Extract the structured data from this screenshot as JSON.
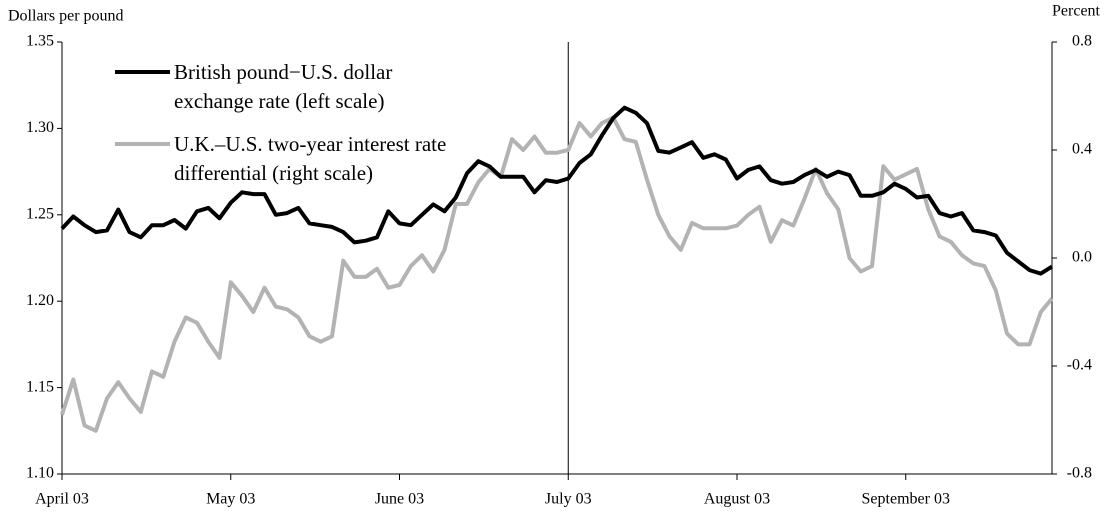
{
  "chart_data": {
    "type": "line",
    "y_label": "Dollars per pound",
    "y2_label": "Percent",
    "categories": [
      "April 03",
      null,
      null,
      null,
      null,
      null,
      null,
      null,
      null,
      null,
      null,
      null,
      null,
      null,
      null,
      "May 03",
      null,
      null,
      null,
      null,
      null,
      null,
      null,
      null,
      null,
      null,
      null,
      null,
      null,
      null,
      "June 03",
      null,
      null,
      null,
      null,
      null,
      null,
      null,
      null,
      null,
      null,
      null,
      null,
      null,
      null,
      "July 03",
      null,
      null,
      null,
      null,
      null,
      null,
      null,
      null,
      null,
      null,
      null,
      null,
      null,
      null,
      "August 03",
      null,
      null,
      null,
      null,
      null,
      null,
      null,
      null,
      null,
      null,
      null,
      null,
      null,
      null,
      "September 03",
      null,
      null,
      null,
      null,
      null,
      null,
      null,
      null,
      null,
      null,
      null,
      null,
      null
    ],
    "marker_category": "July 03",
    "series": [
      {
        "name": "British pound−U.S. dollar exchange rate (left scale)",
        "color": "#000000",
        "axis": "y",
        "values": [
          1.242,
          1.249,
          1.244,
          1.24,
          1.241,
          1.253,
          1.24,
          1.237,
          1.244,
          1.244,
          1.247,
          1.242,
          1.252,
          1.254,
          1.248,
          1.257,
          1.263,
          1.262,
          1.262,
          1.25,
          1.251,
          1.254,
          1.245,
          1.244,
          1.243,
          1.24,
          1.234,
          1.235,
          1.237,
          1.252,
          1.245,
          1.244,
          1.25,
          1.256,
          1.252,
          1.26,
          1.274,
          1.281,
          1.278,
          1.272,
          1.272,
          1.272,
          1.263,
          1.27,
          1.269,
          1.271,
          1.28,
          1.285,
          1.296,
          1.306,
          1.312,
          1.309,
          1.303,
          1.287,
          1.286,
          1.289,
          1.292,
          1.283,
          1.285,
          1.282,
          1.271,
          1.276,
          1.278,
          1.27,
          1.268,
          1.269,
          1.273,
          1.276,
          1.272,
          1.275,
          1.273,
          1.261,
          1.261,
          1.263,
          1.268,
          1.265,
          1.26,
          1.261,
          1.251,
          1.249,
          1.251,
          1.241,
          1.24,
          1.238,
          1.228,
          1.223,
          1.218,
          1.216,
          1.22
        ]
      },
      {
        "name": "U.K.–U.S. two-year interest rate differential (right scale)",
        "color": "#b3b3b3",
        "axis": "y2",
        "values": [
          -0.58,
          -0.45,
          -0.62,
          -0.64,
          -0.52,
          -0.46,
          -0.52,
          -0.57,
          -0.42,
          -0.44,
          -0.31,
          -0.22,
          -0.24,
          -0.31,
          -0.37,
          -0.09,
          -0.14,
          -0.2,
          -0.11,
          -0.18,
          -0.19,
          -0.22,
          -0.29,
          -0.31,
          -0.29,
          -0.01,
          -0.07,
          -0.07,
          -0.04,
          -0.11,
          -0.1,
          -0.03,
          0.01,
          -0.05,
          0.03,
          0.2,
          0.2,
          0.28,
          0.33,
          0.3,
          0.44,
          0.4,
          0.45,
          0.39,
          0.39,
          0.4,
          0.5,
          0.45,
          0.5,
          0.52,
          0.44,
          0.43,
          0.29,
          0.16,
          0.08,
          0.03,
          0.13,
          0.11,
          0.11,
          0.11,
          0.12,
          0.16,
          0.19,
          0.06,
          0.14,
          0.12,
          0.22,
          0.33,
          0.24,
          0.18,
          0.0,
          -0.05,
          -0.03,
          0.34,
          0.29,
          0.31,
          0.33,
          0.18,
          0.08,
          0.06,
          0.01,
          -0.02,
          -0.03,
          -0.12,
          -0.28,
          -0.32,
          -0.32,
          -0.2,
          -0.15
        ]
      }
    ],
    "ylim": [
      1.1,
      1.35
    ],
    "yticks": [
      {
        "value": 1.1,
        "label": "1.10"
      },
      1.15,
      {
        "value": 1.2,
        "label": "1.20"
      },
      1.25,
      {
        "value": 1.3,
        "label": "1.30"
      },
      1.35
    ],
    "y2lim": [
      -0.8,
      0.8
    ],
    "y2ticks": [
      -0.8,
      -0.4,
      {
        "value": 0,
        "label": "0.0"
      },
      0.4,
      0.8
    ],
    "grid": false,
    "legend": "upper left"
  }
}
